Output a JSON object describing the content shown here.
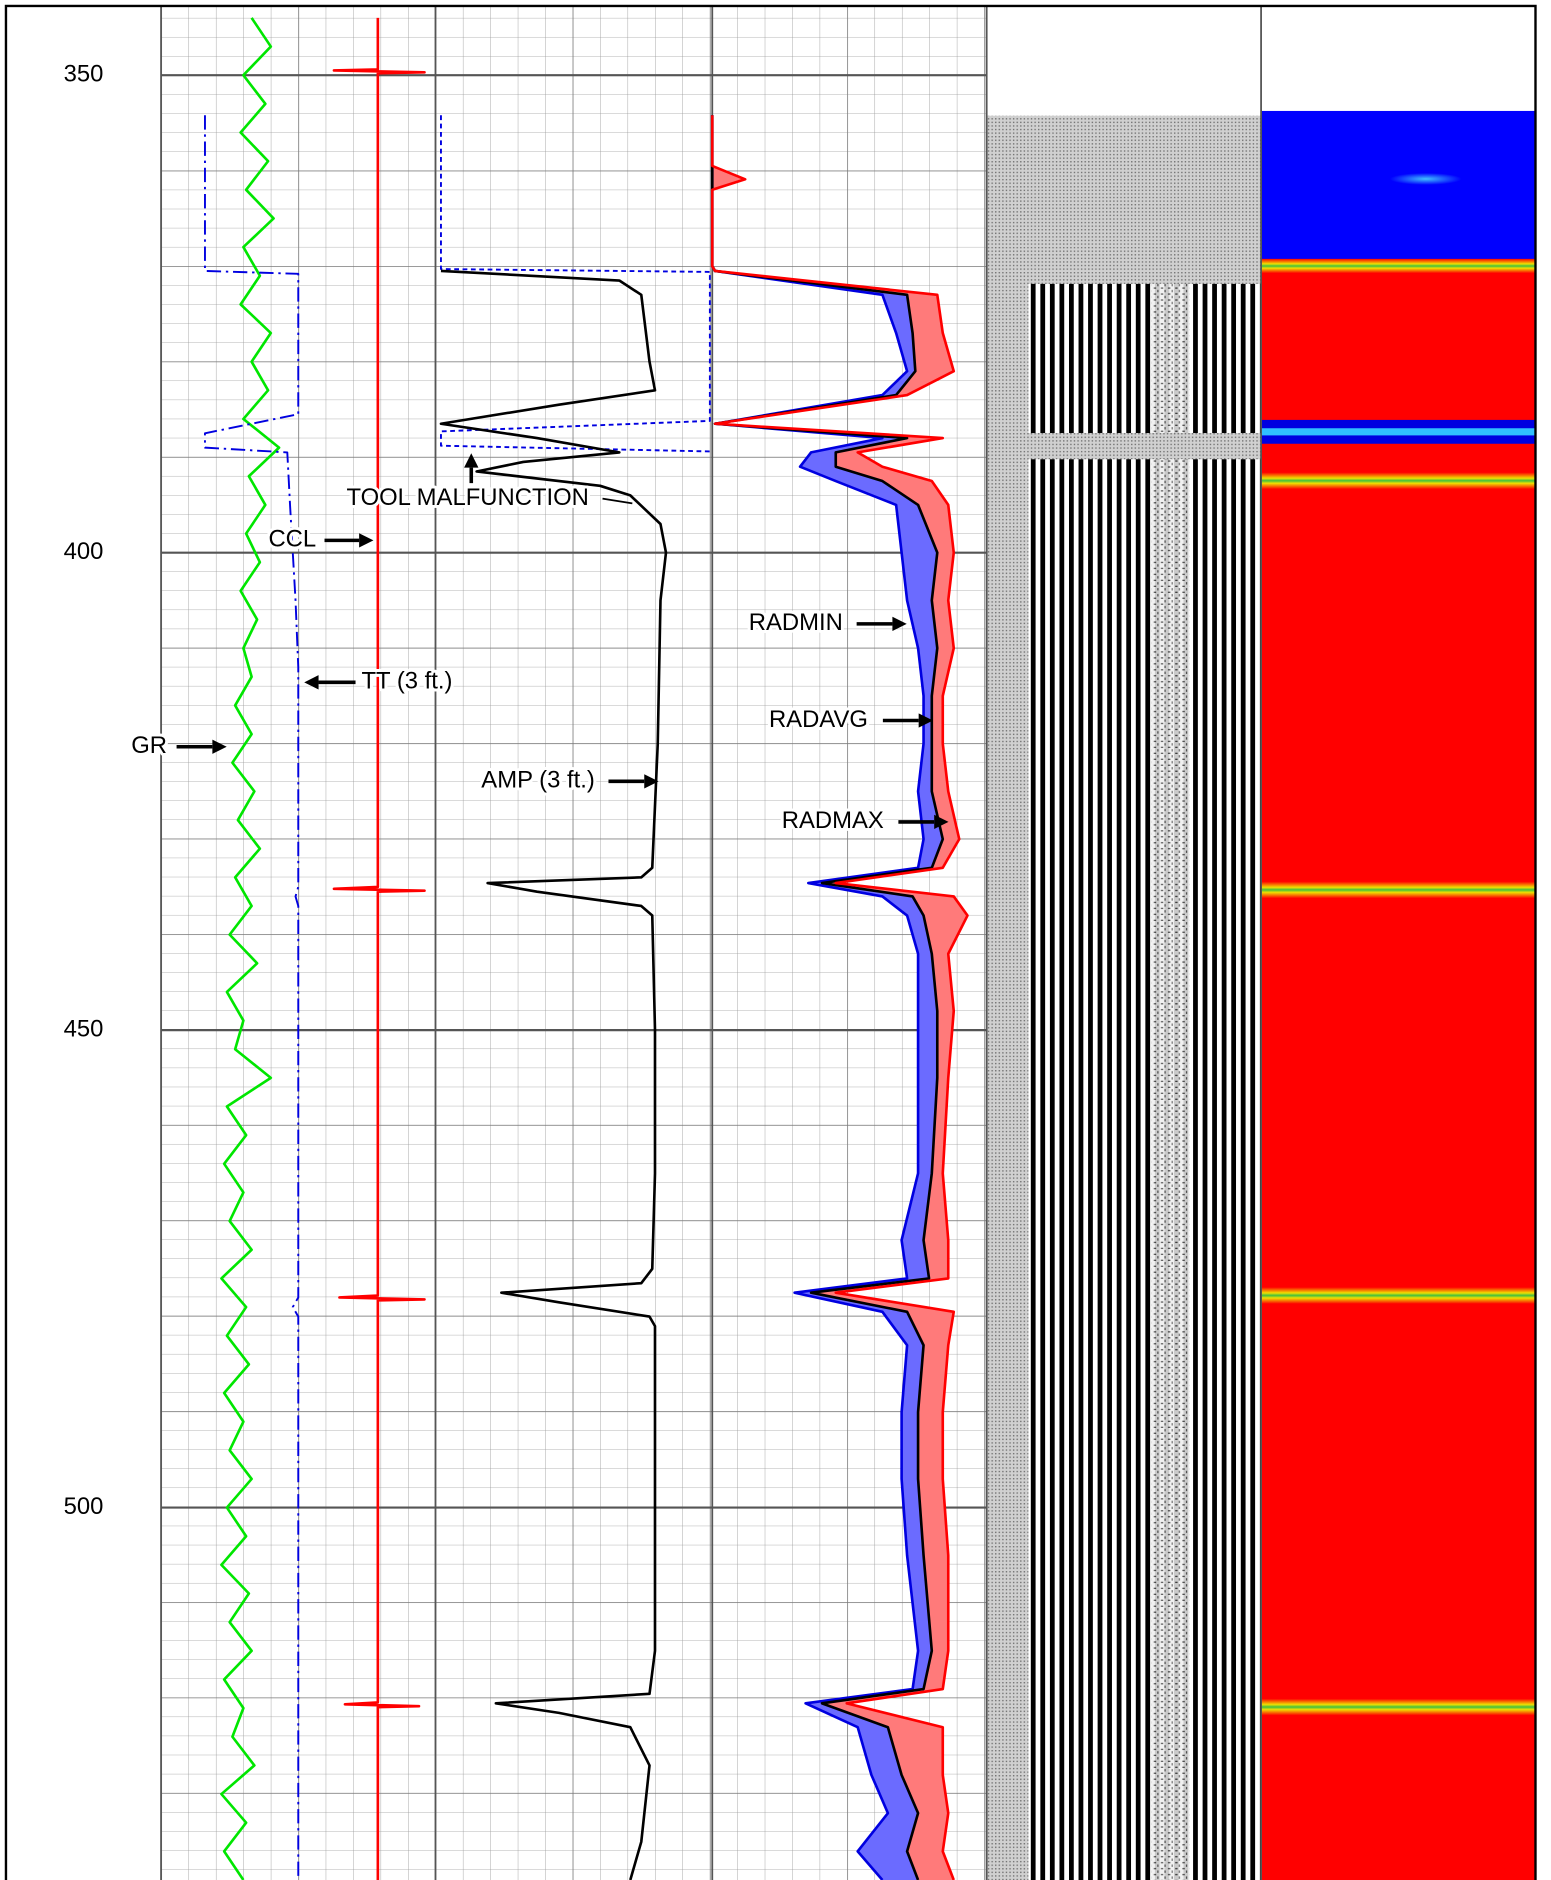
{
  "chart_data": {
    "type": "well-log",
    "ylim": [
      342.75,
      539
    ],
    "yticks": [
      350,
      400,
      450,
      500
    ],
    "grid": true,
    "annotations": [
      "TOOL MALFUNCTION",
      "CCL",
      "TT (3 ft.)",
      "GR",
      "AMP (3 ft.)",
      "RADMIN",
      "RADAVG",
      "RADMAX"
    ],
    "tracks": [
      {
        "xlim": [
          0,
          100
        ],
        "series": [
          {
            "color": "#00e600",
            "style": "solid",
            "depth": [
              344,
              347,
              350,
              353,
              356,
              359,
              362,
              365,
              368,
              371,
              374,
              377,
              380,
              383,
              386,
              389,
              392,
              395,
              398,
              401,
              404,
              407,
              410,
              413,
              416,
              419,
              422,
              425,
              428,
              431,
              434,
              437,
              440,
              443,
              446,
              449,
              452,
              455,
              458,
              461,
              464,
              467,
              470,
              473,
              476,
              479,
              482,
              485,
              488,
              491,
              494,
              497,
              500,
              503,
              506,
              509,
              512,
              515,
              518,
              521,
              524,
              527,
              530,
              533,
              536,
              539
            ],
            "values": [
              33,
              40,
              30,
              38,
              29,
              39,
              31,
              41,
              30,
              36,
              29,
              40,
              33,
              39,
              30,
              43,
              32,
              38,
              31,
              36,
              29,
              35,
              30,
              33,
              27,
              33,
              26,
              34,
              28,
              36,
              27,
              33,
              25,
              35,
              24,
              30,
              27,
              40,
              24,
              31,
              23,
              30,
              25,
              33,
              22,
              31,
              24,
              32,
              23,
              30,
              25,
              33,
              24,
              31,
              22,
              32,
              25,
              33,
              23,
              30,
              26,
              34,
              22,
              31,
              23,
              30
            ]
          },
          {
            "color": "#0000e0",
            "style": "dash-dot",
            "depth": [
              354.2,
              370.5,
              370.8,
              385.5,
              387.5,
              389,
              389.5,
              395,
              405,
              412,
              435,
              436,
              437,
              478,
              479,
              480,
              539
            ],
            "values": [
              16,
              16,
              50,
              50,
              16,
              16,
              46,
              47,
              49,
              50,
              50,
              49,
              50,
              50,
              48,
              50,
              50
            ]
          },
          {
            "color": "#ff0000",
            "style": "solid",
            "depth": [
              344,
              349.4,
              349.5,
              349.7,
              349.8,
              435,
              435.2,
              435.4,
              435.5,
              477.8,
              478,
              478.2,
              478.3,
              520.4,
              520.6,
              520.8,
              520.9,
              539
            ],
            "values": [
              79,
              79,
              63,
              96,
              79,
              79,
              63,
              96,
              79,
              79,
              65,
              96,
              79,
              79,
              67,
              94,
              79,
              79
            ]
          }
        ]
      },
      {
        "xlim": [
          0,
          100
        ],
        "series": [
          {
            "color": "#0000e0",
            "style": "dash",
            "depth": [
              354.2,
              370.3,
              370.6,
              386.2,
              387.3,
              388.8,
              389.4
            ],
            "values": [
              2,
              2,
              100,
              100,
              2,
              2,
              100
            ]
          },
          {
            "color": "#000000",
            "style": "solid",
            "depth": [
              370.5,
              371.5,
              373,
              380,
              383,
              384.5,
              386.5,
              388,
              389.5,
              390.5,
              391.5,
              393,
              394,
              397,
              400,
              405,
              420,
              433,
              434,
              434.6,
              435.5,
              437,
              438,
              450,
              465,
              475,
              476.5,
              477.5,
              478.5,
              480,
              481,
              500,
              515,
              519.5,
              520.5,
              521.5,
              523,
              527,
              535,
              539
            ],
            "values": [
              2,
              67,
              75,
              78,
              80,
              45,
              2,
              37,
              67,
              32,
              15,
              60,
              71,
              82,
              84,
              82,
              81,
              79,
              75,
              19,
              37,
              75,
              79,
              80,
              80,
              79,
              75,
              24,
              45,
              78,
              80,
              80,
              80,
              78,
              22,
              45,
              71,
              78,
              75,
              71
            ]
          }
        ]
      },
      {
        "xlim": [
          0,
          100
        ],
        "depth": [
          354.2,
          359.5,
          360.9,
          362,
          370,
          370.5,
          373,
          377,
          381,
          383.5,
          386.5,
          388,
          389.5,
          391,
          392.5,
          395,
          400,
          405,
          410,
          415,
          420,
          425,
          430,
          433,
          434.6,
          436,
          438,
          442,
          448,
          455,
          465,
          472,
          476,
          477.5,
          479.5,
          483,
          490,
          497,
          505,
          515,
          519,
          520.5,
          523,
          528,
          532,
          536,
          539
        ],
        "fills": [
          {
            "from": 0,
            "to": 1,
            "color": "#6b6bff"
          },
          {
            "from": 1,
            "to": 2,
            "color": "#ff7a7a"
          }
        ],
        "series": [
          {
            "color": "#0000e0",
            "style": "solid",
            "values": [
              0,
              0,
              0,
              0,
              0,
              1,
              62,
              67,
              71,
              62,
              1,
              62,
              36,
              32,
              45,
              67,
              69,
              71,
              75,
              77,
              77,
              75,
              77,
              75,
              35,
              62,
              71,
              75,
              75,
              75,
              75,
              69,
              71,
              30,
              62,
              71,
              69,
              69,
              71,
              75,
              73,
              34,
              53,
              58,
              64,
              53,
              62
            ]
          },
          {
            "color": "#000000",
            "style": "solid",
            "values": [
              0,
              0,
              0,
              0,
              0,
              1,
              71,
              73,
              74,
              67,
              1,
              71,
              45,
              45,
              62,
              75,
              82,
              80,
              82,
              80,
              80,
              80,
              84,
              80,
              40,
              73,
              77,
              80,
              82,
              82,
              80,
              77,
              79,
              36,
              71,
              77,
              75,
              75,
              77,
              80,
              77,
              40,
              64,
              69,
              75,
              71,
              75
            ]
          },
          {
            "color": "#ff0000",
            "style": "solid",
            "values": [
              0,
              0,
              12,
              0,
              0,
              1,
              82,
              84,
              88,
              71,
              1,
              84,
              53,
              62,
              80,
              86,
              88,
              86,
              88,
              84,
              84,
              86,
              90,
              84,
              45,
              88,
              93,
              86,
              88,
              86,
              84,
              86,
              86,
              45,
              88,
              86,
              84,
              84,
              86,
              86,
              84,
              49,
              84,
              84,
              86,
              84,
              88
            ]
          }
        ]
      }
    ]
  }
}
